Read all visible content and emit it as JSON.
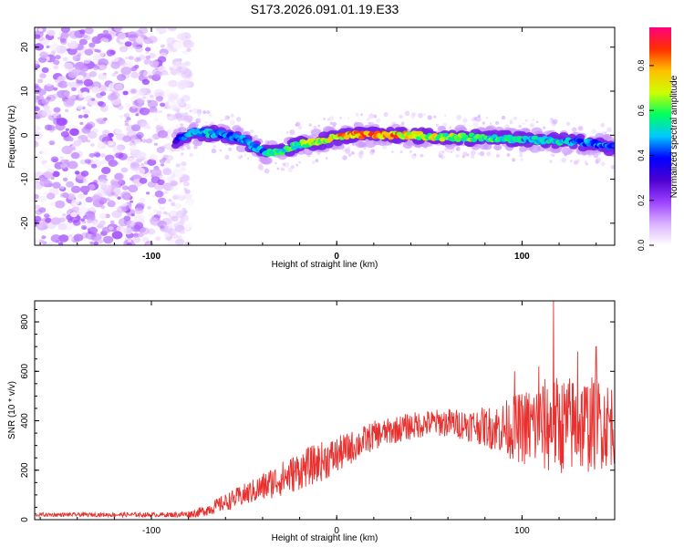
{
  "chart_data": [
    {
      "type": "heatmap",
      "title": "S173.2026.091.01.19.E33",
      "xlabel": "Height of straight line (km)",
      "ylabel": "Frequency (Hz)",
      "xlim": [
        -163,
        150
      ],
      "ylim": [
        -25,
        24.5
      ],
      "xticks": [
        -100,
        0,
        100
      ],
      "yticks": [
        20,
        10,
        0,
        -10,
        -20
      ],
      "colorbar": {
        "label": "Normalized spectral amplitude",
        "range": [
          0,
          0.97
        ],
        "ticks": [
          0.0,
          0.2,
          0.4,
          0.6,
          0.8
        ],
        "tick_labels": [
          "0.0",
          "0.2",
          "0.4",
          "0.6",
          "0.8"
        ],
        "stops": [
          "#ffffff",
          "#d9b0ff",
          "#9a40ff",
          "#4b00d0",
          "#0000ff",
          "#00c8ff",
          "#00ff60",
          "#ccff00",
          "#ffc000",
          "#ff3000",
          "#ff0080"
        ]
      },
      "noise_region": {
        "x_from": -163,
        "x_to": -85,
        "amplitude_range": [
          0.0,
          0.2
        ]
      },
      "ridge": {
        "x": [
          -87,
          -80,
          -70,
          -60,
          -50,
          -45,
          -38,
          -30,
          -20,
          -10,
          0,
          10,
          20,
          30,
          40,
          50,
          60,
          70,
          80,
          90,
          100,
          110,
          120,
          130,
          140,
          150
        ],
        "freq": [
          -1.5,
          0.5,
          0.5,
          0.0,
          -1.0,
          -2.5,
          -4.0,
          -3.8,
          -2.0,
          -1.5,
          -0.5,
          0.0,
          0.0,
          0.0,
          0.0,
          -0.3,
          -0.5,
          -0.5,
          -0.5,
          -0.7,
          -1.0,
          -1.2,
          -1.3,
          -1.5,
          -2.0,
          -2.8
        ],
        "amplitude": [
          0.3,
          0.45,
          0.5,
          0.45,
          0.45,
          0.45,
          0.5,
          0.55,
          0.6,
          0.65,
          0.75,
          0.8,
          0.85,
          0.8,
          0.75,
          0.7,
          0.65,
          0.6,
          0.55,
          0.55,
          0.5,
          0.5,
          0.5,
          0.45,
          0.45,
          0.4
        ]
      }
    },
    {
      "type": "line",
      "title": "",
      "xlabel": "Height of straight line (km)",
      "ylabel": "SNR (10 * v/v)",
      "xlim": [
        -163,
        150
      ],
      "ylim": [
        0,
        885
      ],
      "xticks": [
        -100,
        0,
        100
      ],
      "yticks": [
        0,
        200,
        400,
        600,
        800
      ],
      "color": "#e8302e",
      "series": [
        {
          "name": "SNR",
          "x": [
            -163,
            -140,
            -120,
            -100,
            -90,
            -80,
            -75,
            -70,
            -65,
            -60,
            -55,
            -50,
            -45,
            -40,
            -35,
            -30,
            -25,
            -20,
            -15,
            -10,
            -5,
            0,
            5,
            10,
            15,
            20,
            25,
            30,
            35,
            40,
            45,
            50,
            55,
            60,
            65,
            70,
            75,
            80,
            85,
            90,
            95,
            100,
            105,
            110,
            115,
            120,
            125,
            130,
            135,
            140,
            145,
            150
          ],
          "y": [
            20,
            20,
            20,
            20,
            20,
            22,
            28,
            40,
            55,
            70,
            85,
            100,
            115,
            130,
            150,
            165,
            180,
            200,
            215,
            230,
            245,
            260,
            280,
            300,
            320,
            340,
            350,
            360,
            370,
            378,
            385,
            390,
            392,
            392,
            388,
            385,
            380,
            375,
            372,
            370,
            370,
            372,
            375,
            378,
            380,
            382,
            384,
            385,
            386,
            387,
            388,
            390
          ],
          "noise": [
            8,
            8,
            9,
            9,
            10,
            14,
            18,
            25,
            30,
            35,
            40,
            45,
            50,
            60,
            65,
            70,
            75,
            80,
            80,
            80,
            80,
            75,
            70,
            65,
            60,
            60,
            55,
            55,
            55,
            55,
            55,
            55,
            55,
            60,
            60,
            65,
            70,
            80,
            95,
            110,
            130,
            150,
            170,
            190,
            200,
            200,
            200,
            200,
            200,
            190,
            180,
            170
          ]
        }
      ],
      "peaks": [
        {
          "x": 117,
          "y": 885
        },
        {
          "x": 130,
          "y": 680
        },
        {
          "x": 140,
          "y": 700
        },
        {
          "x": 109,
          "y": 620
        },
        {
          "x": 96,
          "y": 600
        }
      ]
    }
  ]
}
